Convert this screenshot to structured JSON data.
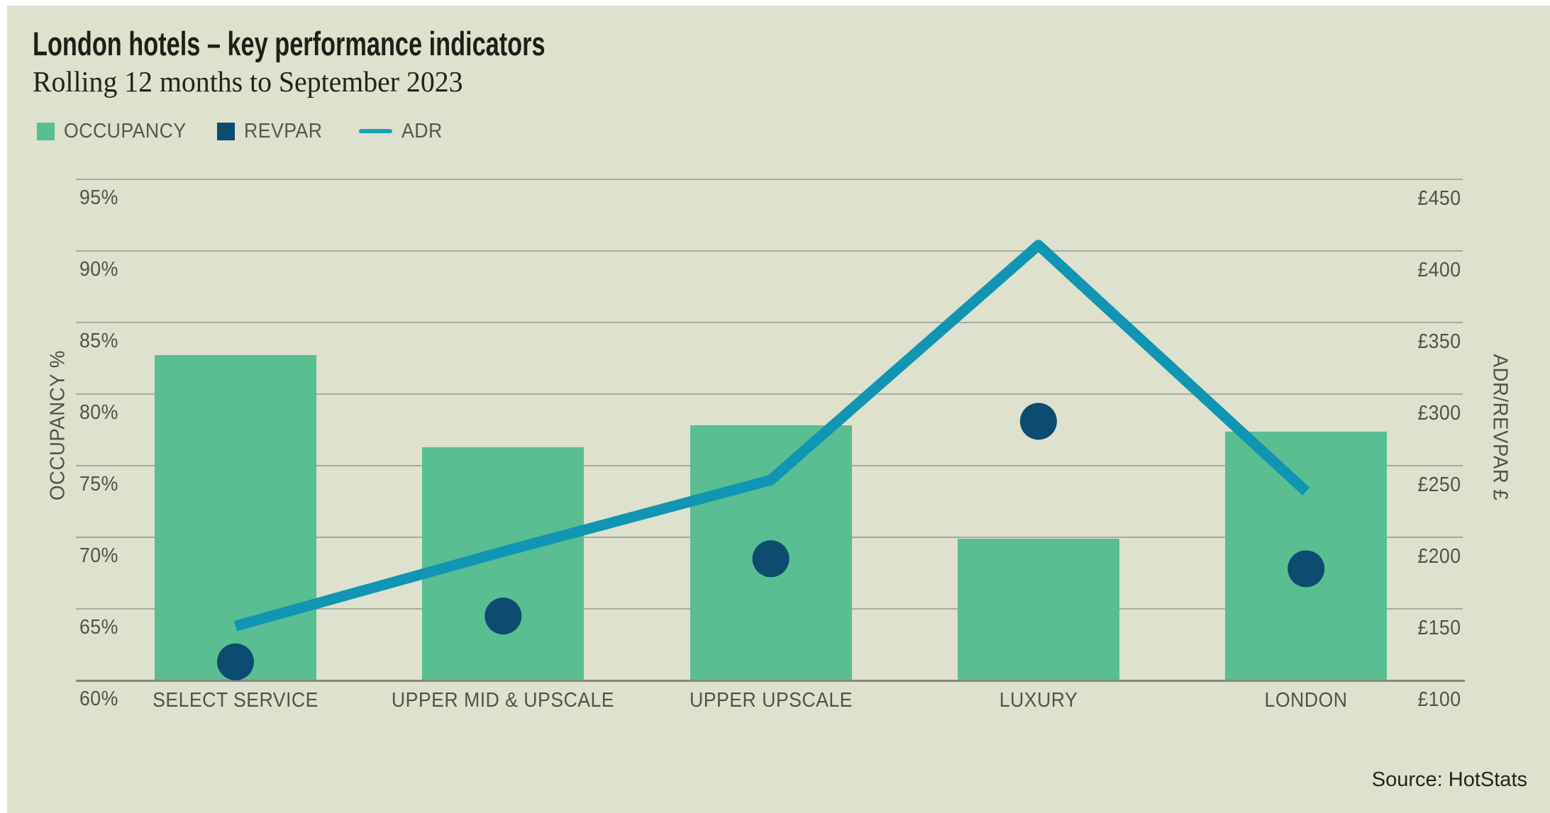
{
  "chart_data": {
    "type": "combo",
    "title": "London hotels – key performance indicators",
    "subtitle": "Rolling 12 months to September 2023",
    "source": "Source: HotStats",
    "categories": [
      "SELECT SERVICE",
      "UPPER MID & UPSCALE",
      "UPPER UPSCALE",
      "LUXURY",
      "LONDON"
    ],
    "series": [
      {
        "name": "OCCUPANCY",
        "type": "bar",
        "axis": "left",
        "unit": "%",
        "color": "#59be91",
        "values": [
          82.7,
          76.3,
          77.8,
          69.9,
          77.4
        ]
      },
      {
        "name": "REVPAR",
        "type": "scatter",
        "axis": "right",
        "unit": "GBP",
        "color": "#0b4c70",
        "values": [
          113,
          145,
          185,
          281,
          178
        ]
      },
      {
        "name": "ADR",
        "type": "line",
        "axis": "right",
        "unit": "GBP",
        "color": "#1095b3",
        "values": [
          138,
          190,
          240,
          404,
          232
        ]
      }
    ],
    "left_axis": {
      "title": "OCCUPANCY %",
      "min": 60,
      "max": 95,
      "step": 5,
      "ticks": [
        "95%",
        "90%",
        "85%",
        "80%",
        "75%",
        "70%",
        "65%",
        "60%"
      ]
    },
    "right_axis": {
      "title": "ADR/REVPAR £",
      "min": 100,
      "max": 450,
      "step": 50,
      "ticks": [
        "£450",
        "£400",
        "£350",
        "£300",
        "£250",
        "£200",
        "£150",
        "£100"
      ]
    },
    "grid": true,
    "legend_position": "top-left",
    "legend": [
      {
        "label": "OCCUPANCY",
        "swatch": "square",
        "color": "#59be91"
      },
      {
        "label": "REVPAR",
        "swatch": "square",
        "color": "#0b4c70"
      },
      {
        "label": "ADR",
        "swatch": "line",
        "color": "#1d9fb8"
      }
    ]
  },
  "colors": {
    "background": "#dde1cd",
    "page_edge": "#ffffff",
    "gridline": "#a8ab9c",
    "axis_line": "#85887b",
    "tick_text": "#4f544b",
    "title_text": "#1d2019"
  }
}
